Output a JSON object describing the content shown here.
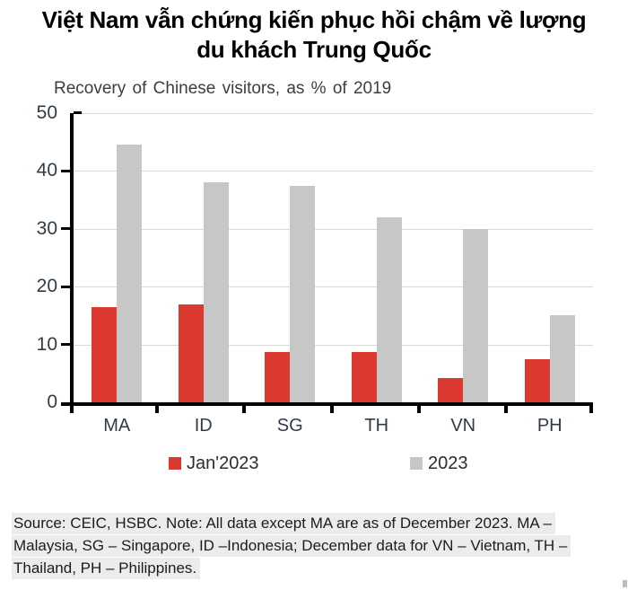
{
  "title": {
    "lines": [
      "Việt Nam vẫn chứng kiến phục hồi chậm về lượng",
      "du khách Trung Quốc"
    ]
  },
  "chart_data": {
    "type": "bar",
    "title": "Recovery of Chinese  visitors,  as % of 2019",
    "categories": [
      "MA",
      "ID",
      "SG",
      "TH",
      "VN",
      "PH"
    ],
    "series": [
      {
        "name": "Jan'2023",
        "color": "#dc3a31",
        "values": [
          16.5,
          17,
          8.7,
          8.7,
          4.2,
          7.5
        ]
      },
      {
        "name": "2023",
        "color": "#c7c7c7",
        "values": [
          44.5,
          38,
          37.5,
          32,
          30,
          15
        ]
      }
    ],
    "ylim": [
      0,
      50
    ],
    "yticks": [
      0,
      10,
      20,
      30,
      40,
      50
    ],
    "grid": true,
    "legend_position": "bottom"
  },
  "footer": {
    "lines": [
      "Source: CEIC, HSBC. Note: All data except MA are as of December 2023. MA –",
      "Malaysia, SG – Singapore, ID –Indonesia; December data for VN – Vietnam, TH –",
      "Thailand, PH – Philippines."
    ]
  },
  "colors": {
    "accent_red": "#dc3a31",
    "bar_gray": "#c7c7c7",
    "gridline": "#d9d9d9",
    "axis": "#000000",
    "tick_label": "#323a47",
    "footer_highlight": "#ececec"
  }
}
